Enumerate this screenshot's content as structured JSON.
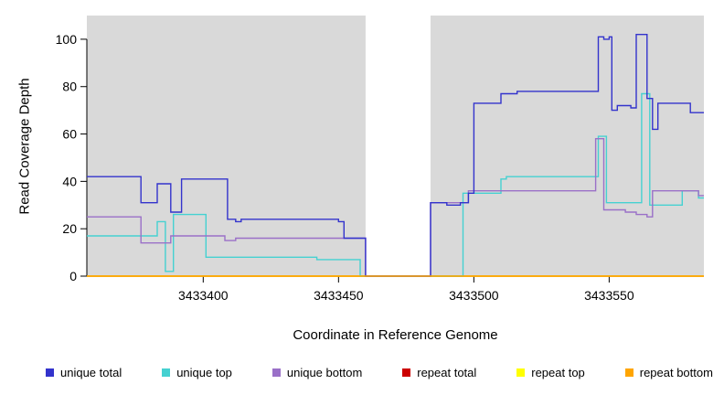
{
  "chart_data": {
    "type": "line",
    "title": "",
    "xlabel": "Coordinate in Reference Genome",
    "ylabel": "Read Coverage Depth",
    "xlim": [
      3433357,
      3433585
    ],
    "ylim": [
      0,
      110
    ],
    "xticks": [
      3433400,
      3433450,
      3433500,
      3433550
    ],
    "yticks": [
      0,
      20,
      40,
      60,
      80,
      100
    ],
    "plot_background": "#d9d9d9",
    "gap_region": [
      3433460,
      3433484
    ],
    "grid": false,
    "legend_position": "bottom",
    "step": true,
    "series": [
      {
        "name": "repeat total",
        "color": "#cc0000",
        "points": [
          [
            3433357,
            0
          ]
        ]
      },
      {
        "name": "repeat top",
        "color": "#ffff00",
        "points": [
          [
            3433357,
            0
          ]
        ]
      },
      {
        "name": "unique top",
        "color": "#45d1d1",
        "points": [
          [
            3433357,
            17
          ],
          [
            3433383,
            23
          ],
          [
            3433386,
            2
          ],
          [
            3433389,
            26
          ],
          [
            3433401,
            8
          ],
          [
            3433442,
            7
          ],
          [
            3433458,
            0
          ],
          [
            3433496,
            35
          ],
          [
            3433510,
            41
          ],
          [
            3433512,
            42
          ],
          [
            3433546,
            59
          ],
          [
            3433549,
            31
          ],
          [
            3433562,
            77
          ],
          [
            3433565,
            30
          ],
          [
            3433577,
            36
          ],
          [
            3433583,
            33
          ]
        ]
      },
      {
        "name": "unique bottom",
        "color": "#9a70c8",
        "points": [
          [
            3433357,
            25
          ],
          [
            3433377,
            14
          ],
          [
            3433388,
            17
          ],
          [
            3433408,
            15
          ],
          [
            3433412,
            16
          ],
          [
            3433452,
            16
          ],
          [
            3433460,
            0
          ],
          [
            3433484,
            31
          ],
          [
            3433498,
            36
          ],
          [
            3433545,
            58
          ],
          [
            3433548,
            28
          ],
          [
            3433556,
            27
          ],
          [
            3433560,
            26
          ],
          [
            3433564,
            25
          ],
          [
            3433566,
            36
          ],
          [
            3433580,
            36
          ],
          [
            3433583,
            34
          ]
        ]
      },
      {
        "name": "unique total",
        "color": "#3333cc",
        "points": [
          [
            3433357,
            42
          ],
          [
            3433377,
            31
          ],
          [
            3433383,
            39
          ],
          [
            3433388,
            27
          ],
          [
            3433392,
            41
          ],
          [
            3433409,
            24
          ],
          [
            3433412,
            23
          ],
          [
            3433414,
            24
          ],
          [
            3433450,
            23
          ],
          [
            3433452,
            16
          ],
          [
            3433460,
            0
          ],
          [
            3433484,
            31
          ],
          [
            3433490,
            30
          ],
          [
            3433495,
            31
          ],
          [
            3433498,
            35
          ],
          [
            3433500,
            73
          ],
          [
            3433510,
            77
          ],
          [
            3433516,
            78
          ],
          [
            3433546,
            101
          ],
          [
            3433548,
            100
          ],
          [
            3433550,
            101
          ],
          [
            3433551,
            70
          ],
          [
            3433553,
            72
          ],
          [
            3433558,
            71
          ],
          [
            3433560,
            102
          ],
          [
            3433564,
            75
          ],
          [
            3433566,
            62
          ],
          [
            3433568,
            73
          ],
          [
            3433580,
            69
          ]
        ]
      },
      {
        "name": "repeat bottom",
        "color": "#ffa500",
        "points": [
          [
            3433357,
            0
          ]
        ]
      }
    ],
    "legend": [
      {
        "label": "unique total",
        "color": "#3333cc"
      },
      {
        "label": "unique top",
        "color": "#45d1d1"
      },
      {
        "label": "unique bottom",
        "color": "#9a70c8"
      },
      {
        "label": "repeat total",
        "color": "#cc0000"
      },
      {
        "label": "repeat top",
        "color": "#ffff00"
      },
      {
        "label": "repeat bottom",
        "color": "#ffa500"
      }
    ]
  }
}
